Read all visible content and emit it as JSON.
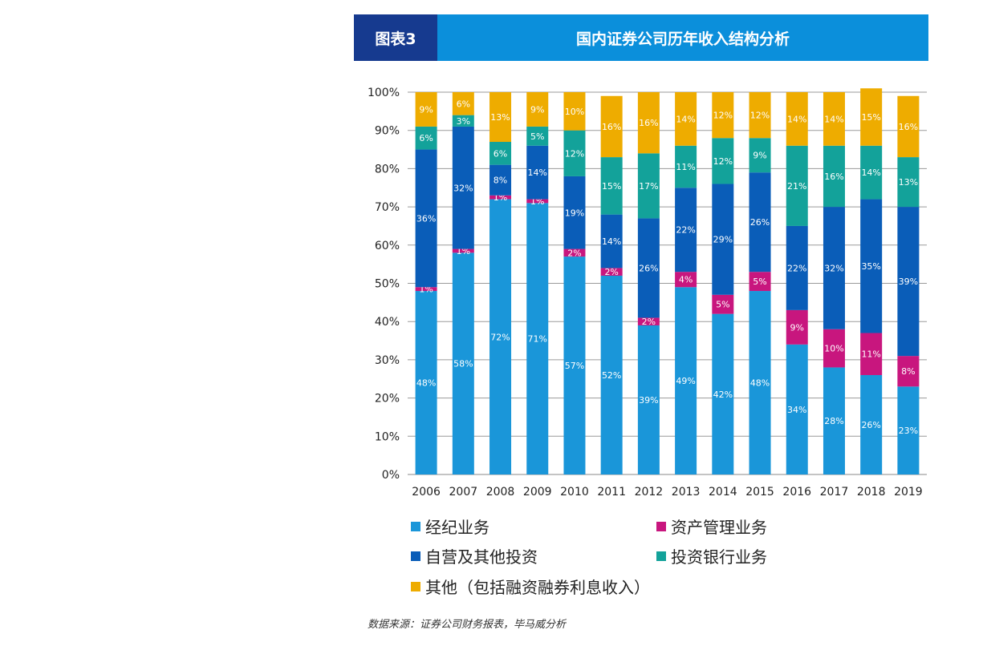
{
  "header": {
    "tag": "图表3",
    "title": "国内证券公司历年收入结构分析"
  },
  "chart_data": {
    "type": "bar",
    "stacked": true,
    "percent": true,
    "title": "国内证券公司历年收入结构分析",
    "categories": [
      "2006",
      "2007",
      "2008",
      "2009",
      "2010",
      "2011",
      "2012",
      "2013",
      "2014",
      "2015",
      "2016",
      "2017",
      "2018",
      "2019"
    ],
    "ylim": [
      0,
      100
    ],
    "yticks": [
      "0%",
      "10%",
      "20%",
      "30%",
      "40%",
      "50%",
      "60%",
      "70%",
      "80%",
      "90%",
      "100%"
    ],
    "grid": true,
    "series": [
      {
        "name": "经纪业务",
        "color": "#1a96d9",
        "values": [
          48,
          58,
          72,
          71,
          57,
          52,
          39,
          49,
          42,
          48,
          34,
          28,
          26,
          23
        ],
        "labels": [
          "48%",
          "58%",
          "72%",
          "71%",
          "57%",
          "52%",
          "39%",
          "49%",
          "42%",
          "48%",
          "34%",
          "28%",
          "26%",
          "23%"
        ]
      },
      {
        "name": "资产管理业务",
        "color": "#c8167e",
        "values": [
          1,
          1,
          1,
          1,
          2,
          2,
          2,
          4,
          5,
          5,
          9,
          10,
          11,
          8
        ],
        "labels": [
          "1%",
          "1%",
          "1%",
          "1%",
          "2%",
          "2%",
          "2%",
          "4%",
          "5%",
          "5%",
          "9%",
          "10%",
          "11%",
          "8%"
        ]
      },
      {
        "name": "自营及其他投资",
        "color": "#0a5db8",
        "values": [
          36,
          32,
          8,
          14,
          19,
          14,
          26,
          22,
          29,
          26,
          22,
          32,
          35,
          39
        ],
        "labels": [
          "36%",
          "32%",
          "8%",
          "14%",
          "19%",
          "14%",
          "26%",
          "22%",
          "29%",
          "26%",
          "22%",
          "32%",
          "35%",
          "39%"
        ]
      },
      {
        "name": "投资银行业务",
        "color": "#13a29a",
        "values": [
          6,
          3,
          6,
          5,
          12,
          15,
          17,
          11,
          12,
          9,
          21,
          16,
          14,
          13
        ],
        "labels": [
          "6%",
          "3%",
          "6%",
          "5%",
          "12%",
          "15%",
          "17%",
          "11%",
          "12%",
          "9%",
          "21%",
          "16%",
          "14%",
          "13%"
        ]
      },
      {
        "name": "其他（包括融资融券利息收入）",
        "color": "#eeac00",
        "values": [
          9,
          6,
          13,
          9,
          10,
          16,
          16,
          14,
          12,
          12,
          14,
          14,
          15,
          16
        ],
        "labels": [
          "9%",
          "6%",
          "13%",
          "9%",
          "10%",
          "16%",
          "16%",
          "14%",
          "12%",
          "12%",
          "14%",
          "14%",
          "15%",
          "16%"
        ]
      }
    ]
  },
  "legend": {
    "items": [
      {
        "name": "经纪业务",
        "color": "#1a96d9"
      },
      {
        "name": "资产管理业务",
        "color": "#c8167e"
      },
      {
        "name": "自营及其他投资",
        "color": "#0a5db8"
      },
      {
        "name": "投资银行业务",
        "color": "#13a29a"
      },
      {
        "name": "其他（包括融资融券利息收入）",
        "color": "#eeac00"
      }
    ]
  },
  "source": "数据来源：证券公司财务报表，毕马威分析"
}
